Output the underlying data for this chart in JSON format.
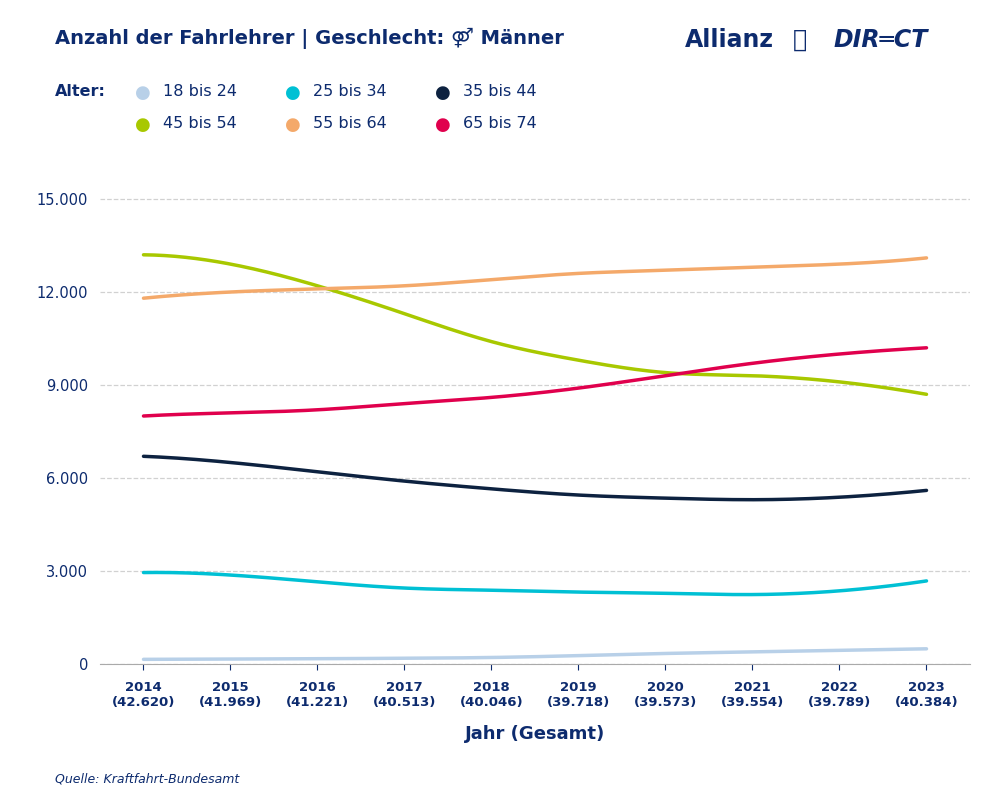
{
  "years": [
    2014,
    2015,
    2016,
    2017,
    2018,
    2019,
    2020,
    2021,
    2022,
    2023
  ],
  "totals": [
    "42.620",
    "41.969",
    "41.221",
    "40.513",
    "40.046",
    "39.718",
    "39.573",
    "39.554",
    "39.789",
    "40.384"
  ],
  "series": {
    "18 bis 24": {
      "color": "#b8d0e8",
      "values": [
        150,
        160,
        170,
        185,
        210,
        270,
        340,
        390,
        440,
        490
      ]
    },
    "25 bis 34": {
      "color": "#00c0d4",
      "values": [
        2950,
        2870,
        2650,
        2450,
        2380,
        2320,
        2280,
        2240,
        2360,
        2680
      ]
    },
    "35 bis 44": {
      "color": "#0d2240",
      "values": [
        6700,
        6500,
        6200,
        5900,
        5650,
        5450,
        5350,
        5300,
        5380,
        5600
      ]
    },
    "45 bis 54": {
      "color": "#a8c800",
      "values": [
        13200,
        12900,
        12200,
        11300,
        10400,
        9800,
        9400,
        9300,
        9100,
        8700
      ]
    },
    "55 bis 64": {
      "color": "#f4a96a",
      "values": [
        11800,
        12000,
        12100,
        12200,
        12400,
        12600,
        12700,
        12800,
        12900,
        13100
      ]
    },
    "65 bis 74": {
      "color": "#e0004d",
      "values": [
        8000,
        8100,
        8200,
        8400,
        8600,
        8900,
        9300,
        9700,
        10000,
        10200
      ]
    }
  },
  "title_part1": "Anzahl der Fahrlehrer | Geschlecht: ",
  "title_icon": "♀",
  "title_part2": " Männer",
  "legend_prefix": "Alter:",
  "xlabel": "Jahr (Gesamt)",
  "source": "Quelle: Kraftfahrt-Bundesamt",
  "yticks": [
    0,
    3000,
    6000,
    9000,
    12000,
    15000
  ],
  "ylim": [
    0,
    16000
  ],
  "background_color": "#ffffff",
  "grid_color": "#cccccc",
  "title_color": "#0d2b6e",
  "text_color": "#0d2b6e",
  "legend_text_color": "#1a1a1a",
  "source_color": "#0d2b6e"
}
